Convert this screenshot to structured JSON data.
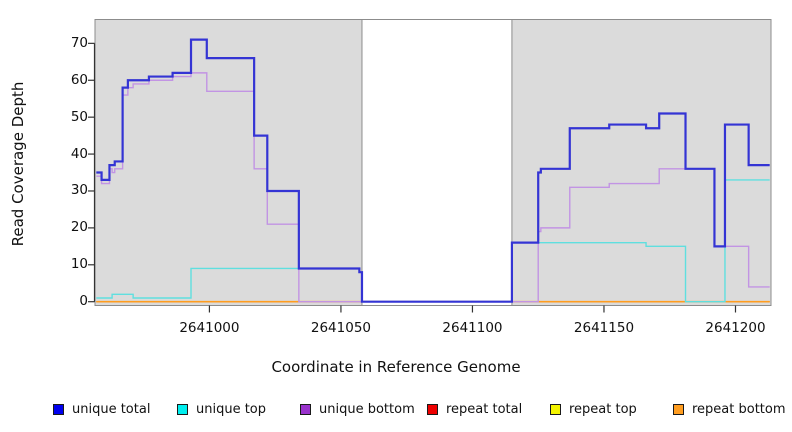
{
  "chart_data": {
    "type": "line",
    "subtype": "step-after",
    "title": "",
    "xlabel": "Coordinate in Reference Genome",
    "ylabel": "Read Coverage Depth",
    "xlim": [
      2640956.5,
      2641213.5
    ],
    "ylim": [
      0,
      76
    ],
    "grid": false,
    "x_tick_values": [
      2641000,
      2641050,
      2641100,
      2641150,
      2641200
    ],
    "x_tick_labels": [
      "2641000",
      "2641050",
      "2641100",
      "2641150",
      "2641200"
    ],
    "y_tick_values": [
      0,
      10,
      20,
      30,
      40,
      50,
      60,
      70
    ],
    "y_tick_labels": [
      "0",
      "10",
      "20",
      "30",
      "40",
      "50",
      "60",
      "70"
    ],
    "panel_fill": "#dbdbdb",
    "panel_border": "#8c8c8c",
    "white_gap_region": [
      2641058,
      2641115
    ],
    "shaded_regions": [
      [
        2640956.5,
        2641058
      ],
      [
        2641115,
        2641213.5
      ]
    ],
    "draw_order": [
      3,
      4,
      5,
      2,
      1,
      0
    ],
    "series": [
      {
        "name": "unique total",
        "color": "#3434d4",
        "width": 2.2,
        "points": [
          [
            2640957,
            35
          ],
          [
            2640959,
            33
          ],
          [
            2640962,
            37
          ],
          [
            2640964,
            38
          ],
          [
            2640967,
            58
          ],
          [
            2640969,
            60
          ],
          [
            2640977,
            61
          ],
          [
            2640986,
            62
          ],
          [
            2640993,
            71
          ],
          [
            2640999,
            66
          ],
          [
            2641017,
            45
          ],
          [
            2641022,
            30
          ],
          [
            2641034,
            9
          ],
          [
            2641057,
            8
          ],
          [
            2641058,
            0
          ],
          [
            2641115,
            16
          ],
          [
            2641125,
            35
          ],
          [
            2641126,
            36
          ],
          [
            2641137,
            47
          ],
          [
            2641152,
            48
          ],
          [
            2641166,
            47
          ],
          [
            2641171,
            51
          ],
          [
            2641181,
            36
          ],
          [
            2641192,
            15
          ],
          [
            2641196,
            48
          ],
          [
            2641205,
            37
          ],
          [
            2641213,
            37
          ]
        ]
      },
      {
        "name": "unique top",
        "color": "#5fdfdf",
        "width": 1.4,
        "points": [
          [
            2640957,
            1
          ],
          [
            2640963,
            2
          ],
          [
            2640971,
            1
          ],
          [
            2640993,
            9
          ],
          [
            2641057,
            8
          ],
          [
            2641058,
            0
          ],
          [
            2641115,
            16
          ],
          [
            2641166,
            15
          ],
          [
            2641181,
            0
          ],
          [
            2641196,
            33
          ],
          [
            2641213,
            33
          ]
        ]
      },
      {
        "name": "unique bottom",
        "color": "#c294e4",
        "width": 1.4,
        "points": [
          [
            2640957,
            34
          ],
          [
            2640959,
            32
          ],
          [
            2640962,
            36
          ],
          [
            2640963,
            35
          ],
          [
            2640964,
            36
          ],
          [
            2640967,
            56
          ],
          [
            2640969,
            58
          ],
          [
            2640971,
            59
          ],
          [
            2640977,
            60
          ],
          [
            2640986,
            61
          ],
          [
            2640993,
            62
          ],
          [
            2640999,
            57
          ],
          [
            2641017,
            36
          ],
          [
            2641022,
            21
          ],
          [
            2641034,
            0
          ],
          [
            2641115,
            0
          ],
          [
            2641125,
            19
          ],
          [
            2641126,
            20
          ],
          [
            2641137,
            31
          ],
          [
            2641152,
            32
          ],
          [
            2641171,
            36
          ],
          [
            2641192,
            15
          ],
          [
            2641205,
            4
          ],
          [
            2641213,
            4
          ]
        ]
      },
      {
        "name": "repeat total",
        "color": "#e01010",
        "width": 1.2,
        "points": [
          [
            2640957,
            0
          ],
          [
            2641213,
            0
          ]
        ]
      },
      {
        "name": "repeat top",
        "color": "#f5f500",
        "width": 1.2,
        "points": [
          [
            2640957,
            0
          ],
          [
            2641213,
            0
          ]
        ]
      },
      {
        "name": "repeat bottom",
        "color": "#ff9d20",
        "width": 1.6,
        "points": [
          [
            2640957,
            0
          ],
          [
            2641213,
            0
          ]
        ]
      }
    ]
  },
  "axes": {
    "x_title": "Coordinate in Reference Genome",
    "y_title": "Read Coverage Depth"
  },
  "legend": {
    "items": [
      {
        "label": "unique total",
        "color": "#0000ee"
      },
      {
        "label": "unique top",
        "color": "#00eeee"
      },
      {
        "label": "unique bottom",
        "color": "#9932cc"
      },
      {
        "label": "repeat total",
        "color": "#ee0000"
      },
      {
        "label": "repeat top",
        "color": "#f5f500"
      },
      {
        "label": "repeat bottom",
        "color": "#ff9d20"
      }
    ]
  }
}
